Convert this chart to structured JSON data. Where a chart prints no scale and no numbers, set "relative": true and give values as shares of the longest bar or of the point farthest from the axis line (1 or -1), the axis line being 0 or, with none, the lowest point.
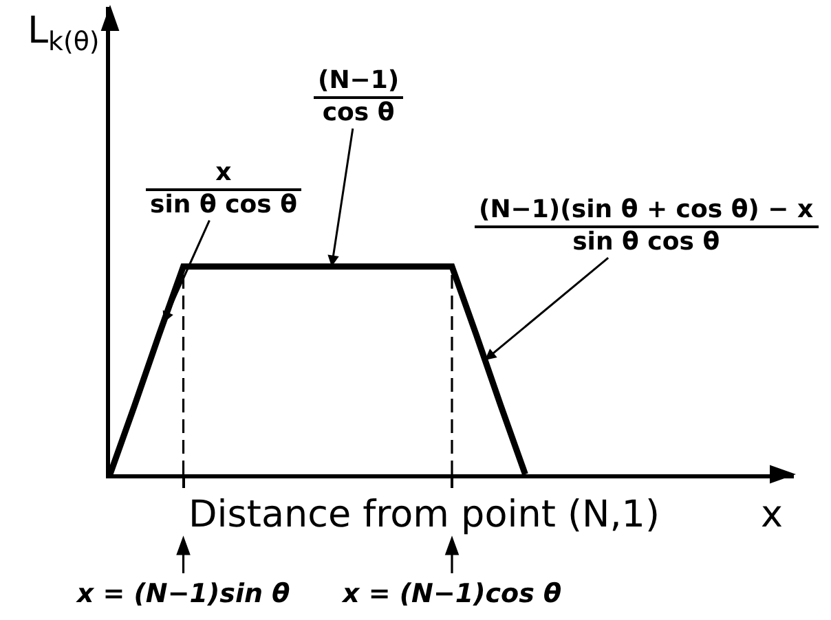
{
  "chart_data": {
    "type": "line",
    "xlabel": "Distance from point (N,1)",
    "categories": [
      null,
      null,
      null,
      "x = (N−1)sin θ",
      null,
      null,
      null,
      null,
      null,
      null,
      null,
      null,
      null,
      null,
      "x = (N−1)cos θ",
      null,
      null,
      null,
      null,
      null,
      null,
      null,
      null,
      null,
      null,
      null,
      null,
      null,
      null
    ],
    "values": [
      0,
      0.33,
      0.67,
      1,
      1,
      1,
      1,
      1,
      1,
      1,
      1,
      1,
      1,
      1,
      1,
      0.67,
      0.33,
      0,
      null,
      null,
      null,
      null,
      null,
      null,
      null,
      null,
      null,
      null,
      null
    ],
    "color": "#000000",
    "relative": true,
    "tick_labels": "x",
    "ref_lines": [
      {
        "axis": "x",
        "value": "x = (N−1)sin θ",
        "line_style": "dashed"
      },
      {
        "axis": "x",
        "value": "x = (N−1)cos θ",
        "line_style": "dashed"
      }
    ],
    "annotations": [
      "L$_{k(θ)}$",
      "x\nsin θ cos θ",
      "(N−1)\ncos θ",
      "(N−1)(sin θ + cos θ) − x\nsin θ cos θ",
      "x"
    ]
  }
}
